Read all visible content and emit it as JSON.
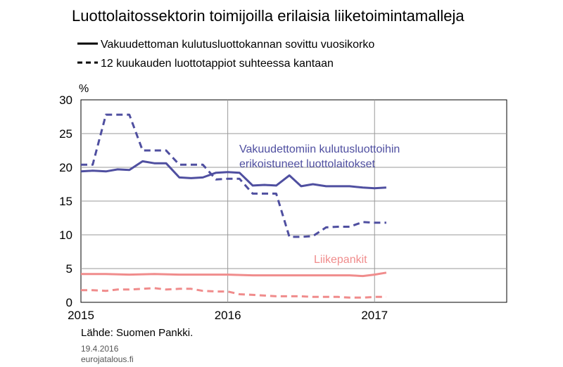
{
  "chart_data": {
    "type": "line",
    "title": "Luottolaitossektorin toimijoilla erilaisia liiketoimintamalleja",
    "ylabel": "%",
    "ylim": [
      0,
      30
    ],
    "yticks": [
      0,
      5,
      10,
      15,
      20,
      25,
      30
    ],
    "xlim": [
      2015,
      2017.9
    ],
    "xticks": [
      2015,
      2016,
      2017
    ],
    "xtick_labels": [
      "2015",
      "2016",
      "2017"
    ],
    "grid": true,
    "legend": [
      {
        "label": "Vakuudettoman kulutusluottokannan sovittu vuosikorko",
        "style": "solid"
      },
      {
        "label": "12 kuukauden luottotappiot suhteessa kantaan",
        "style": "dashed"
      }
    ],
    "annotations": [
      {
        "text": "Vakuudettomiin kulutusluottoihin",
        "color": "#4f4fa0"
      },
      {
        "text": "erikoistuneet luottolaitokset",
        "color": "#4f4fa0"
      },
      {
        "text": "Liikepankit",
        "color": "#f08c8c"
      }
    ],
    "series": [
      {
        "group": "Vakuudettomiin kulutusluottoihin erikoistuneet luottolaitokset",
        "kind": "sovittu vuosikorko",
        "style": "solid",
        "color": "#4f4fa0",
        "x": [
          2015.0,
          2015.08,
          2015.17,
          2015.25,
          2015.33,
          2015.42,
          2015.5,
          2015.58,
          2015.67,
          2015.75,
          2015.83,
          2015.92,
          2016.0,
          2016.08,
          2016.17,
          2016.25,
          2016.33,
          2016.42,
          2016.5,
          2016.58,
          2016.67,
          2016.75,
          2016.83,
          2016.92,
          2017.0,
          2017.08
        ],
        "y": [
          19.4,
          19.5,
          19.4,
          19.7,
          19.6,
          20.9,
          20.6,
          20.6,
          18.5,
          18.4,
          18.5,
          19.2,
          19.3,
          19.2,
          17.3,
          17.4,
          17.3,
          18.8,
          17.2,
          17.5,
          17.2,
          17.2,
          17.2,
          17.0,
          16.9,
          17.0
        ]
      },
      {
        "group": "Vakuudettomiin kulutusluottoihin erikoistuneet luottolaitokset",
        "kind": "12 kuukauden luottotappiot",
        "style": "dashed",
        "color": "#4f4fa0",
        "x": [
          2015.0,
          2015.08,
          2015.17,
          2015.25,
          2015.33,
          2015.42,
          2015.5,
          2015.58,
          2015.67,
          2015.75,
          2015.83,
          2015.92,
          2016.0,
          2016.08,
          2016.17,
          2016.25,
          2016.33,
          2016.42,
          2016.5,
          2016.58,
          2016.67,
          2016.75,
          2016.83,
          2016.92,
          2017.0,
          2017.08
        ],
        "y": [
          20.4,
          20.4,
          27.8,
          27.8,
          27.8,
          22.5,
          22.5,
          22.5,
          20.4,
          20.4,
          20.4,
          18.2,
          18.3,
          18.3,
          16.1,
          16.1,
          16.1,
          9.7,
          9.7,
          9.8,
          11.1,
          11.2,
          11.2,
          11.9,
          11.8,
          11.8
        ]
      },
      {
        "group": "Liikepankit",
        "kind": "sovittu vuosikorko",
        "style": "solid",
        "color": "#f08c8c",
        "x": [
          2015.0,
          2015.17,
          2015.33,
          2015.5,
          2015.67,
          2015.83,
          2016.0,
          2016.17,
          2016.33,
          2016.5,
          2016.67,
          2016.83,
          2016.92,
          2017.0,
          2017.08
        ],
        "y": [
          4.2,
          4.2,
          4.1,
          4.2,
          4.1,
          4.1,
          4.1,
          4.0,
          4.0,
          4.0,
          4.0,
          4.0,
          3.9,
          4.1,
          4.4
        ]
      },
      {
        "group": "Liikepankit",
        "kind": "12 kuukauden luottotappiot",
        "style": "dashed",
        "color": "#f08c8c",
        "x": [
          2015.0,
          2015.08,
          2015.17,
          2015.25,
          2015.33,
          2015.42,
          2015.5,
          2015.58,
          2015.67,
          2015.75,
          2015.83,
          2015.92,
          2016.0,
          2016.08,
          2016.17,
          2016.25,
          2016.33,
          2016.42,
          2016.5,
          2016.58,
          2016.67,
          2016.75,
          2016.83,
          2016.92,
          2017.0,
          2017.08
        ],
        "y": [
          1.8,
          1.8,
          1.7,
          1.9,
          1.9,
          2.0,
          2.1,
          1.9,
          2.0,
          2.0,
          1.7,
          1.6,
          1.6,
          1.2,
          1.1,
          1.0,
          0.9,
          0.9,
          0.9,
          0.8,
          0.8,
          0.8,
          0.7,
          0.7,
          0.8,
          0.8
        ]
      }
    ],
    "source": "Lähde: Suomen Pankki.",
    "footer_date": "19.4.2016",
    "footer_site": "eurojatalous.fi"
  }
}
